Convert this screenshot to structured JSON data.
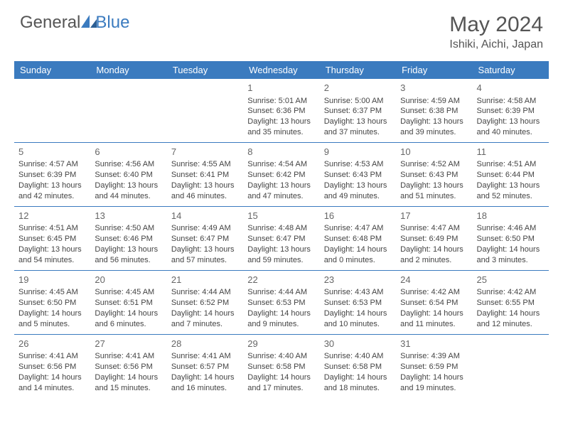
{
  "logo": {
    "text_general": "General",
    "text_blue": "Blue"
  },
  "header": {
    "month_title": "May 2024",
    "location": "Ishiki, Aichi, Japan"
  },
  "calendar": {
    "type": "table",
    "header_bg": "#3b7bbf",
    "header_fg": "#ffffff",
    "border_color": "#3b7bbf",
    "day_headers": [
      "Sunday",
      "Monday",
      "Tuesday",
      "Wednesday",
      "Thursday",
      "Friday",
      "Saturday"
    ],
    "weeks": [
      [
        null,
        null,
        null,
        {
          "n": "1",
          "sr": "Sunrise: 5:01 AM",
          "ss": "Sunset: 6:36 PM",
          "d1": "Daylight: 13 hours",
          "d2": "and 35 minutes."
        },
        {
          "n": "2",
          "sr": "Sunrise: 5:00 AM",
          "ss": "Sunset: 6:37 PM",
          "d1": "Daylight: 13 hours",
          "d2": "and 37 minutes."
        },
        {
          "n": "3",
          "sr": "Sunrise: 4:59 AM",
          "ss": "Sunset: 6:38 PM",
          "d1": "Daylight: 13 hours",
          "d2": "and 39 minutes."
        },
        {
          "n": "4",
          "sr": "Sunrise: 4:58 AM",
          "ss": "Sunset: 6:39 PM",
          "d1": "Daylight: 13 hours",
          "d2": "and 40 minutes."
        }
      ],
      [
        {
          "n": "5",
          "sr": "Sunrise: 4:57 AM",
          "ss": "Sunset: 6:39 PM",
          "d1": "Daylight: 13 hours",
          "d2": "and 42 minutes."
        },
        {
          "n": "6",
          "sr": "Sunrise: 4:56 AM",
          "ss": "Sunset: 6:40 PM",
          "d1": "Daylight: 13 hours",
          "d2": "and 44 minutes."
        },
        {
          "n": "7",
          "sr": "Sunrise: 4:55 AM",
          "ss": "Sunset: 6:41 PM",
          "d1": "Daylight: 13 hours",
          "d2": "and 46 minutes."
        },
        {
          "n": "8",
          "sr": "Sunrise: 4:54 AM",
          "ss": "Sunset: 6:42 PM",
          "d1": "Daylight: 13 hours",
          "d2": "and 47 minutes."
        },
        {
          "n": "9",
          "sr": "Sunrise: 4:53 AM",
          "ss": "Sunset: 6:43 PM",
          "d1": "Daylight: 13 hours",
          "d2": "and 49 minutes."
        },
        {
          "n": "10",
          "sr": "Sunrise: 4:52 AM",
          "ss": "Sunset: 6:43 PM",
          "d1": "Daylight: 13 hours",
          "d2": "and 51 minutes."
        },
        {
          "n": "11",
          "sr": "Sunrise: 4:51 AM",
          "ss": "Sunset: 6:44 PM",
          "d1": "Daylight: 13 hours",
          "d2": "and 52 minutes."
        }
      ],
      [
        {
          "n": "12",
          "sr": "Sunrise: 4:51 AM",
          "ss": "Sunset: 6:45 PM",
          "d1": "Daylight: 13 hours",
          "d2": "and 54 minutes."
        },
        {
          "n": "13",
          "sr": "Sunrise: 4:50 AM",
          "ss": "Sunset: 6:46 PM",
          "d1": "Daylight: 13 hours",
          "d2": "and 56 minutes."
        },
        {
          "n": "14",
          "sr": "Sunrise: 4:49 AM",
          "ss": "Sunset: 6:47 PM",
          "d1": "Daylight: 13 hours",
          "d2": "and 57 minutes."
        },
        {
          "n": "15",
          "sr": "Sunrise: 4:48 AM",
          "ss": "Sunset: 6:47 PM",
          "d1": "Daylight: 13 hours",
          "d2": "and 59 minutes."
        },
        {
          "n": "16",
          "sr": "Sunrise: 4:47 AM",
          "ss": "Sunset: 6:48 PM",
          "d1": "Daylight: 14 hours",
          "d2": "and 0 minutes."
        },
        {
          "n": "17",
          "sr": "Sunrise: 4:47 AM",
          "ss": "Sunset: 6:49 PM",
          "d1": "Daylight: 14 hours",
          "d2": "and 2 minutes."
        },
        {
          "n": "18",
          "sr": "Sunrise: 4:46 AM",
          "ss": "Sunset: 6:50 PM",
          "d1": "Daylight: 14 hours",
          "d2": "and 3 minutes."
        }
      ],
      [
        {
          "n": "19",
          "sr": "Sunrise: 4:45 AM",
          "ss": "Sunset: 6:50 PM",
          "d1": "Daylight: 14 hours",
          "d2": "and 5 minutes."
        },
        {
          "n": "20",
          "sr": "Sunrise: 4:45 AM",
          "ss": "Sunset: 6:51 PM",
          "d1": "Daylight: 14 hours",
          "d2": "and 6 minutes."
        },
        {
          "n": "21",
          "sr": "Sunrise: 4:44 AM",
          "ss": "Sunset: 6:52 PM",
          "d1": "Daylight: 14 hours",
          "d2": "and 7 minutes."
        },
        {
          "n": "22",
          "sr": "Sunrise: 4:44 AM",
          "ss": "Sunset: 6:53 PM",
          "d1": "Daylight: 14 hours",
          "d2": "and 9 minutes."
        },
        {
          "n": "23",
          "sr": "Sunrise: 4:43 AM",
          "ss": "Sunset: 6:53 PM",
          "d1": "Daylight: 14 hours",
          "d2": "and 10 minutes."
        },
        {
          "n": "24",
          "sr": "Sunrise: 4:42 AM",
          "ss": "Sunset: 6:54 PM",
          "d1": "Daylight: 14 hours",
          "d2": "and 11 minutes."
        },
        {
          "n": "25",
          "sr": "Sunrise: 4:42 AM",
          "ss": "Sunset: 6:55 PM",
          "d1": "Daylight: 14 hours",
          "d2": "and 12 minutes."
        }
      ],
      [
        {
          "n": "26",
          "sr": "Sunrise: 4:41 AM",
          "ss": "Sunset: 6:56 PM",
          "d1": "Daylight: 14 hours",
          "d2": "and 14 minutes."
        },
        {
          "n": "27",
          "sr": "Sunrise: 4:41 AM",
          "ss": "Sunset: 6:56 PM",
          "d1": "Daylight: 14 hours",
          "d2": "and 15 minutes."
        },
        {
          "n": "28",
          "sr": "Sunrise: 4:41 AM",
          "ss": "Sunset: 6:57 PM",
          "d1": "Daylight: 14 hours",
          "d2": "and 16 minutes."
        },
        {
          "n": "29",
          "sr": "Sunrise: 4:40 AM",
          "ss": "Sunset: 6:58 PM",
          "d1": "Daylight: 14 hours",
          "d2": "and 17 minutes."
        },
        {
          "n": "30",
          "sr": "Sunrise: 4:40 AM",
          "ss": "Sunset: 6:58 PM",
          "d1": "Daylight: 14 hours",
          "d2": "and 18 minutes."
        },
        {
          "n": "31",
          "sr": "Sunrise: 4:39 AM",
          "ss": "Sunset: 6:59 PM",
          "d1": "Daylight: 14 hours",
          "d2": "and 19 minutes."
        },
        null
      ]
    ]
  }
}
